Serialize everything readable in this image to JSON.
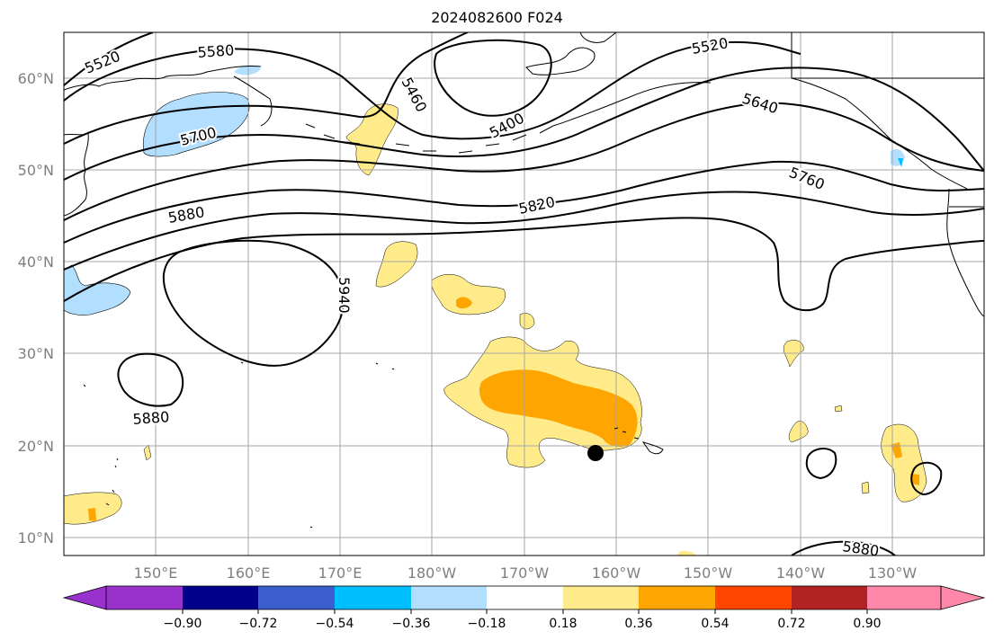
{
  "title": "2024082600 F024",
  "lat_labels": [
    "60°N",
    "50°N",
    "40°N",
    "30°N",
    "20°N",
    "10°N"
  ],
  "lon_labels": [
    "150°E",
    "160°E",
    "170°E",
    "180°W",
    "170°W",
    "160°W",
    "150°W",
    "140°W",
    "130°W"
  ],
  "contour_labels": {
    "c5520a": "5520",
    "c5580": "5580",
    "c5520b": "5520",
    "c5460": "5460",
    "c5400": "5400",
    "c5640": "5640",
    "c5700": "5700",
    "c5760": "5760",
    "c5820": "5820",
    "c5880a": "5880",
    "c5940": "5940",
    "c5880b": "5880",
    "c5880c": "5880"
  },
  "colorbar": {
    "colors": [
      "#9932CC",
      "#00008B",
      "#3A5FCD",
      "#00BFFF",
      "#B2DFFF",
      "#FFFFFF",
      "#FFEB8A",
      "#FFA500",
      "#FF4500",
      "#B22222",
      "#FF88AA"
    ],
    "ticks": [
      "−0.90",
      "−0.72",
      "−0.54",
      "−0.36",
      "−0.18",
      "0.18",
      "0.36",
      "0.54",
      "0.72",
      "0.90"
    ]
  },
  "marker": {
    "label": "storm center",
    "color": "#000000"
  }
}
